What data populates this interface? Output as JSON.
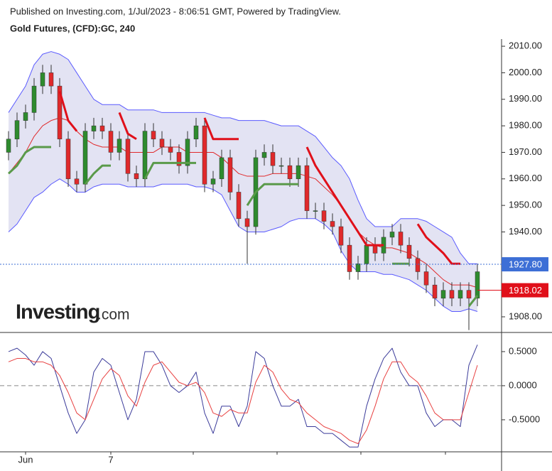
{
  "header": {
    "published": "Published on Investing.com, 1/Jul/2023 - 8:06:51 GMT, Powered by TradingView.",
    "symbol": "Gold Futures, (CFD):GC, 240"
  },
  "logo": {
    "brand": "Investing",
    "suffix": ".com"
  },
  "chart_data": [
    {
      "type": "candlestick",
      "categories": [
        null,
        null,
        "Jun",
        null,
        null,
        null,
        null,
        null,
        null,
        null,
        null,
        null,
        "7",
        null,
        null,
        null,
        null,
        null,
        null,
        null,
        null,
        null,
        null,
        null,
        null,
        null,
        null,
        null,
        null,
        null,
        null,
        null,
        null,
        null,
        null,
        null,
        null,
        null,
        null,
        null,
        null,
        null,
        null,
        null,
        null,
        null,
        null,
        null,
        null,
        null,
        null,
        null,
        null,
        null,
        null,
        null
      ],
      "open": [
        1970,
        1975,
        1982,
        1985,
        1995,
        2000,
        1995,
        1975,
        1960,
        1958,
        1978,
        1980,
        1978,
        1970,
        1975,
        1962,
        1960,
        1978,
        1975,
        1972,
        1970,
        1965,
        1975,
        1980,
        1958,
        1960,
        1968,
        1955,
        1945,
        1942,
        1968,
        1970,
        1965,
        1965,
        1960,
        1965,
        1948,
        1948,
        1944,
        1942,
        1935,
        1925,
        1928,
        1935,
        1932,
        1938,
        1940,
        1935,
        1930,
        1925,
        1920,
        1915,
        1918,
        1915,
        1918,
        1915
      ],
      "high": [
        1978,
        1985,
        1988,
        1998,
        2003,
        2003,
        1998,
        1978,
        1963,
        1981,
        1983,
        1983,
        1981,
        1978,
        1978,
        1965,
        1981,
        1981,
        1978,
        1975,
        1973,
        1978,
        1983,
        1983,
        1963,
        1971,
        1971,
        1958,
        1948,
        1971,
        1973,
        1973,
        1968,
        1968,
        1968,
        1968,
        1951,
        1951,
        1947,
        1945,
        1938,
        1931,
        1938,
        1938,
        1941,
        1943,
        1943,
        1938,
        1933,
        1928,
        1923,
        1921,
        1921,
        1921,
        1921,
        1928
      ],
      "low": [
        1967,
        1972,
        1979,
        1982,
        1992,
        1992,
        1972,
        1957,
        1955,
        1955,
        1975,
        1975,
        1967,
        1967,
        1959,
        1957,
        1957,
        1972,
        1969,
        1967,
        1962,
        1962,
        1972,
        1955,
        1955,
        1957,
        1952,
        1942,
        1928,
        1939,
        1965,
        1962,
        1962,
        1957,
        1957,
        1945,
        1945,
        1941,
        1939,
        1932,
        1922,
        1922,
        1925,
        1929,
        1929,
        1935,
        1932,
        1927,
        1922,
        1917,
        1912,
        1912,
        1912,
        1912,
        1903,
        1912
      ],
      "close": [
        1975,
        1982,
        1985,
        1995,
        2000,
        1995,
        1975,
        1960,
        1958,
        1978,
        1980,
        1978,
        1970,
        1975,
        1962,
        1960,
        1978,
        1975,
        1972,
        1970,
        1965,
        1975,
        1980,
        1958,
        1960,
        1968,
        1955,
        1945,
        1942,
        1968,
        1970,
        1965,
        1965,
        1960,
        1965,
        1948,
        1948,
        1944,
        1942,
        1935,
        1925,
        1928,
        1935,
        1932,
        1938,
        1940,
        1935,
        1930,
        1925,
        1920,
        1915,
        1918,
        1915,
        1918,
        1915,
        1925
      ],
      "up_color": "#2e8b2e",
      "down_color": "#e0292b",
      "bands": {
        "color": "#5a5aff",
        "fill": "#e3e3f3",
        "upper": [
          1985,
          1990,
          1995,
          2003,
          2007,
          2008,
          2007,
          2005,
          2000,
          1995,
          1990,
          1988,
          1988,
          1988,
          1986,
          1986,
          1986,
          1986,
          1985,
          1985,
          1985,
          1985,
          1985,
          1985,
          1984,
          1983,
          1983,
          1982,
          1982,
          1982,
          1982,
          1981,
          1980,
          1980,
          1980,
          1978,
          1976,
          1972,
          1968,
          1965,
          1960,
          1952,
          1945,
          1942,
          1942,
          1942,
          1945,
          1945,
          1945,
          1944,
          1942,
          1940,
          1938,
          1932,
          1928,
          1928
        ],
        "lower": [
          1940,
          1943,
          1948,
          1953,
          1955,
          1958,
          1960,
          1958,
          1955,
          1955,
          1957,
          1958,
          1958,
          1958,
          1957,
          1957,
          1957,
          1957,
          1958,
          1958,
          1958,
          1958,
          1957,
          1957,
          1956,
          1954,
          1948,
          1942,
          1940,
          1940,
          1940,
          1941,
          1942,
          1944,
          1945,
          1945,
          1945,
          1943,
          1940,
          1933,
          1928,
          1925,
          1925,
          1925,
          1924,
          1924,
          1923,
          1922,
          1920,
          1918,
          1915,
          1912,
          1910,
          1910,
          1911,
          1910
        ],
        "middle": [
          1962,
          1966,
          1970,
          1976,
          1980,
          1982,
          1983,
          1982,
          1978,
          1975,
          1973,
          1972,
          1972,
          1972,
          1970,
          1970,
          1970,
          1970,
          1972,
          1972,
          1972,
          1970,
          1970,
          1970,
          1970,
          1968,
          1965,
          1962,
          1961,
          1961,
          1961,
          1962,
          1962,
          1962,
          1962,
          1961,
          1960,
          1957,
          1954,
          1950,
          1945,
          1940,
          1937,
          1935,
          1934,
          1934,
          1933,
          1932,
          1930,
          1928,
          1925,
          1922,
          1920,
          1920,
          1920,
          1919
        ],
        "middle_color": "#e0292b"
      },
      "trail": [
        {
          "color": "#5a9a4a",
          "values": [
            1962,
            1965,
            1970,
            1972,
            1972,
            1972,
            null,
            null,
            null,
            1958,
            1962,
            1965,
            1965,
            null,
            null,
            null,
            1960,
            1966,
            1966,
            1966,
            1966,
            1966,
            1966,
            null,
            null,
            null,
            null,
            null,
            1950,
            1955,
            1958,
            1958,
            1958,
            1958,
            1958,
            null,
            null,
            null,
            null,
            null,
            null,
            null,
            null,
            null,
            null,
            1928,
            1928,
            1928,
            null,
            null,
            null,
            null,
            null,
            null,
            1912,
            1916
          ]
        },
        {
          "color": "#e0101a",
          "values": [
            null,
            null,
            null,
            null,
            null,
            null,
            1993,
            1982,
            1978,
            null,
            null,
            null,
            null,
            1985,
            1977,
            1975,
            null,
            null,
            null,
            null,
            null,
            null,
            null,
            1983,
            1975,
            1975,
            1975,
            1975,
            null,
            null,
            null,
            null,
            null,
            null,
            null,
            1972,
            1965,
            1960,
            1955,
            1950,
            1945,
            1940,
            1935,
            1935,
            1935,
            null,
            null,
            null,
            1943,
            1938,
            1935,
            1932,
            1928,
            1928,
            null,
            null
          ]
        }
      ],
      "ylim": [
        1902.1,
        2012.7
      ],
      "yticks": [
        {
          "value": 1908,
          "label": "1908.00"
        },
        {
          "value": 1940,
          "label": "1940.00"
        },
        {
          "value": 1950,
          "label": "1950.00"
        },
        {
          "value": 1960,
          "label": "1960.00"
        },
        {
          "value": 1970,
          "label": "1970.00"
        },
        {
          "value": 1980,
          "label": "1980.00"
        },
        {
          "value": 1990,
          "label": "1990.00"
        },
        {
          "value": 2000,
          "label": "2000.00"
        },
        {
          "value": 2010,
          "label": "2010.00"
        }
      ],
      "markers": [
        {
          "value": 1927.8,
          "label": "1927.80",
          "color": "#3d6fd6"
        },
        {
          "value": 1918.02,
          "label": "1918.02",
          "color": "#e0101a"
        }
      ]
    },
    {
      "type": "line",
      "series": [
        {
          "color": "#3b3b9a",
          "values": [
            0.5,
            0.55,
            0.45,
            0.3,
            0.5,
            0.4,
            0.0,
            -0.4,
            -0.7,
            -0.5,
            0.2,
            0.4,
            0.3,
            -0.1,
            -0.5,
            -0.2,
            0.5,
            0.5,
            0.3,
            0.0,
            -0.1,
            0.0,
            0.2,
            -0.4,
            -0.7,
            -0.3,
            -0.3,
            -0.6,
            -0.3,
            0.5,
            0.4,
            0.0,
            -0.3,
            -0.3,
            -0.2,
            -0.6,
            -0.6,
            -0.7,
            -0.7,
            -0.8,
            -0.9,
            -0.9,
            -0.3,
            0.1,
            0.4,
            0.55,
            0.2,
            0.0,
            0.0,
            -0.4,
            -0.6,
            -0.5,
            -0.5,
            -0.6,
            0.3,
            0.6
          ]
        },
        {
          "color": "#e84040",
          "values": [
            0.35,
            0.4,
            0.4,
            0.35,
            0.35,
            0.3,
            0.15,
            -0.1,
            -0.4,
            -0.5,
            -0.2,
            0.1,
            0.25,
            0.15,
            -0.15,
            -0.3,
            0.05,
            0.3,
            0.35,
            0.2,
            0.05,
            0.0,
            0.05,
            -0.1,
            -0.4,
            -0.45,
            -0.35,
            -0.4,
            -0.4,
            0.05,
            0.3,
            0.2,
            -0.05,
            -0.2,
            -0.25,
            -0.4,
            -0.5,
            -0.6,
            -0.65,
            -0.7,
            -0.8,
            -0.85,
            -0.65,
            -0.3,
            0.1,
            0.35,
            0.35,
            0.15,
            0.05,
            -0.15,
            -0.4,
            -0.5,
            -0.5,
            -0.5,
            -0.1,
            0.3
          ]
        }
      ],
      "ylim": [
        -0.97,
        0.76
      ],
      "yticks": [
        {
          "value": 0.5,
          "label": "0.5000"
        },
        {
          "value": 0,
          "label": "0.0000"
        },
        {
          "value": -0.5,
          "label": "-0.5000"
        }
      ],
      "zero_line": 0
    }
  ]
}
